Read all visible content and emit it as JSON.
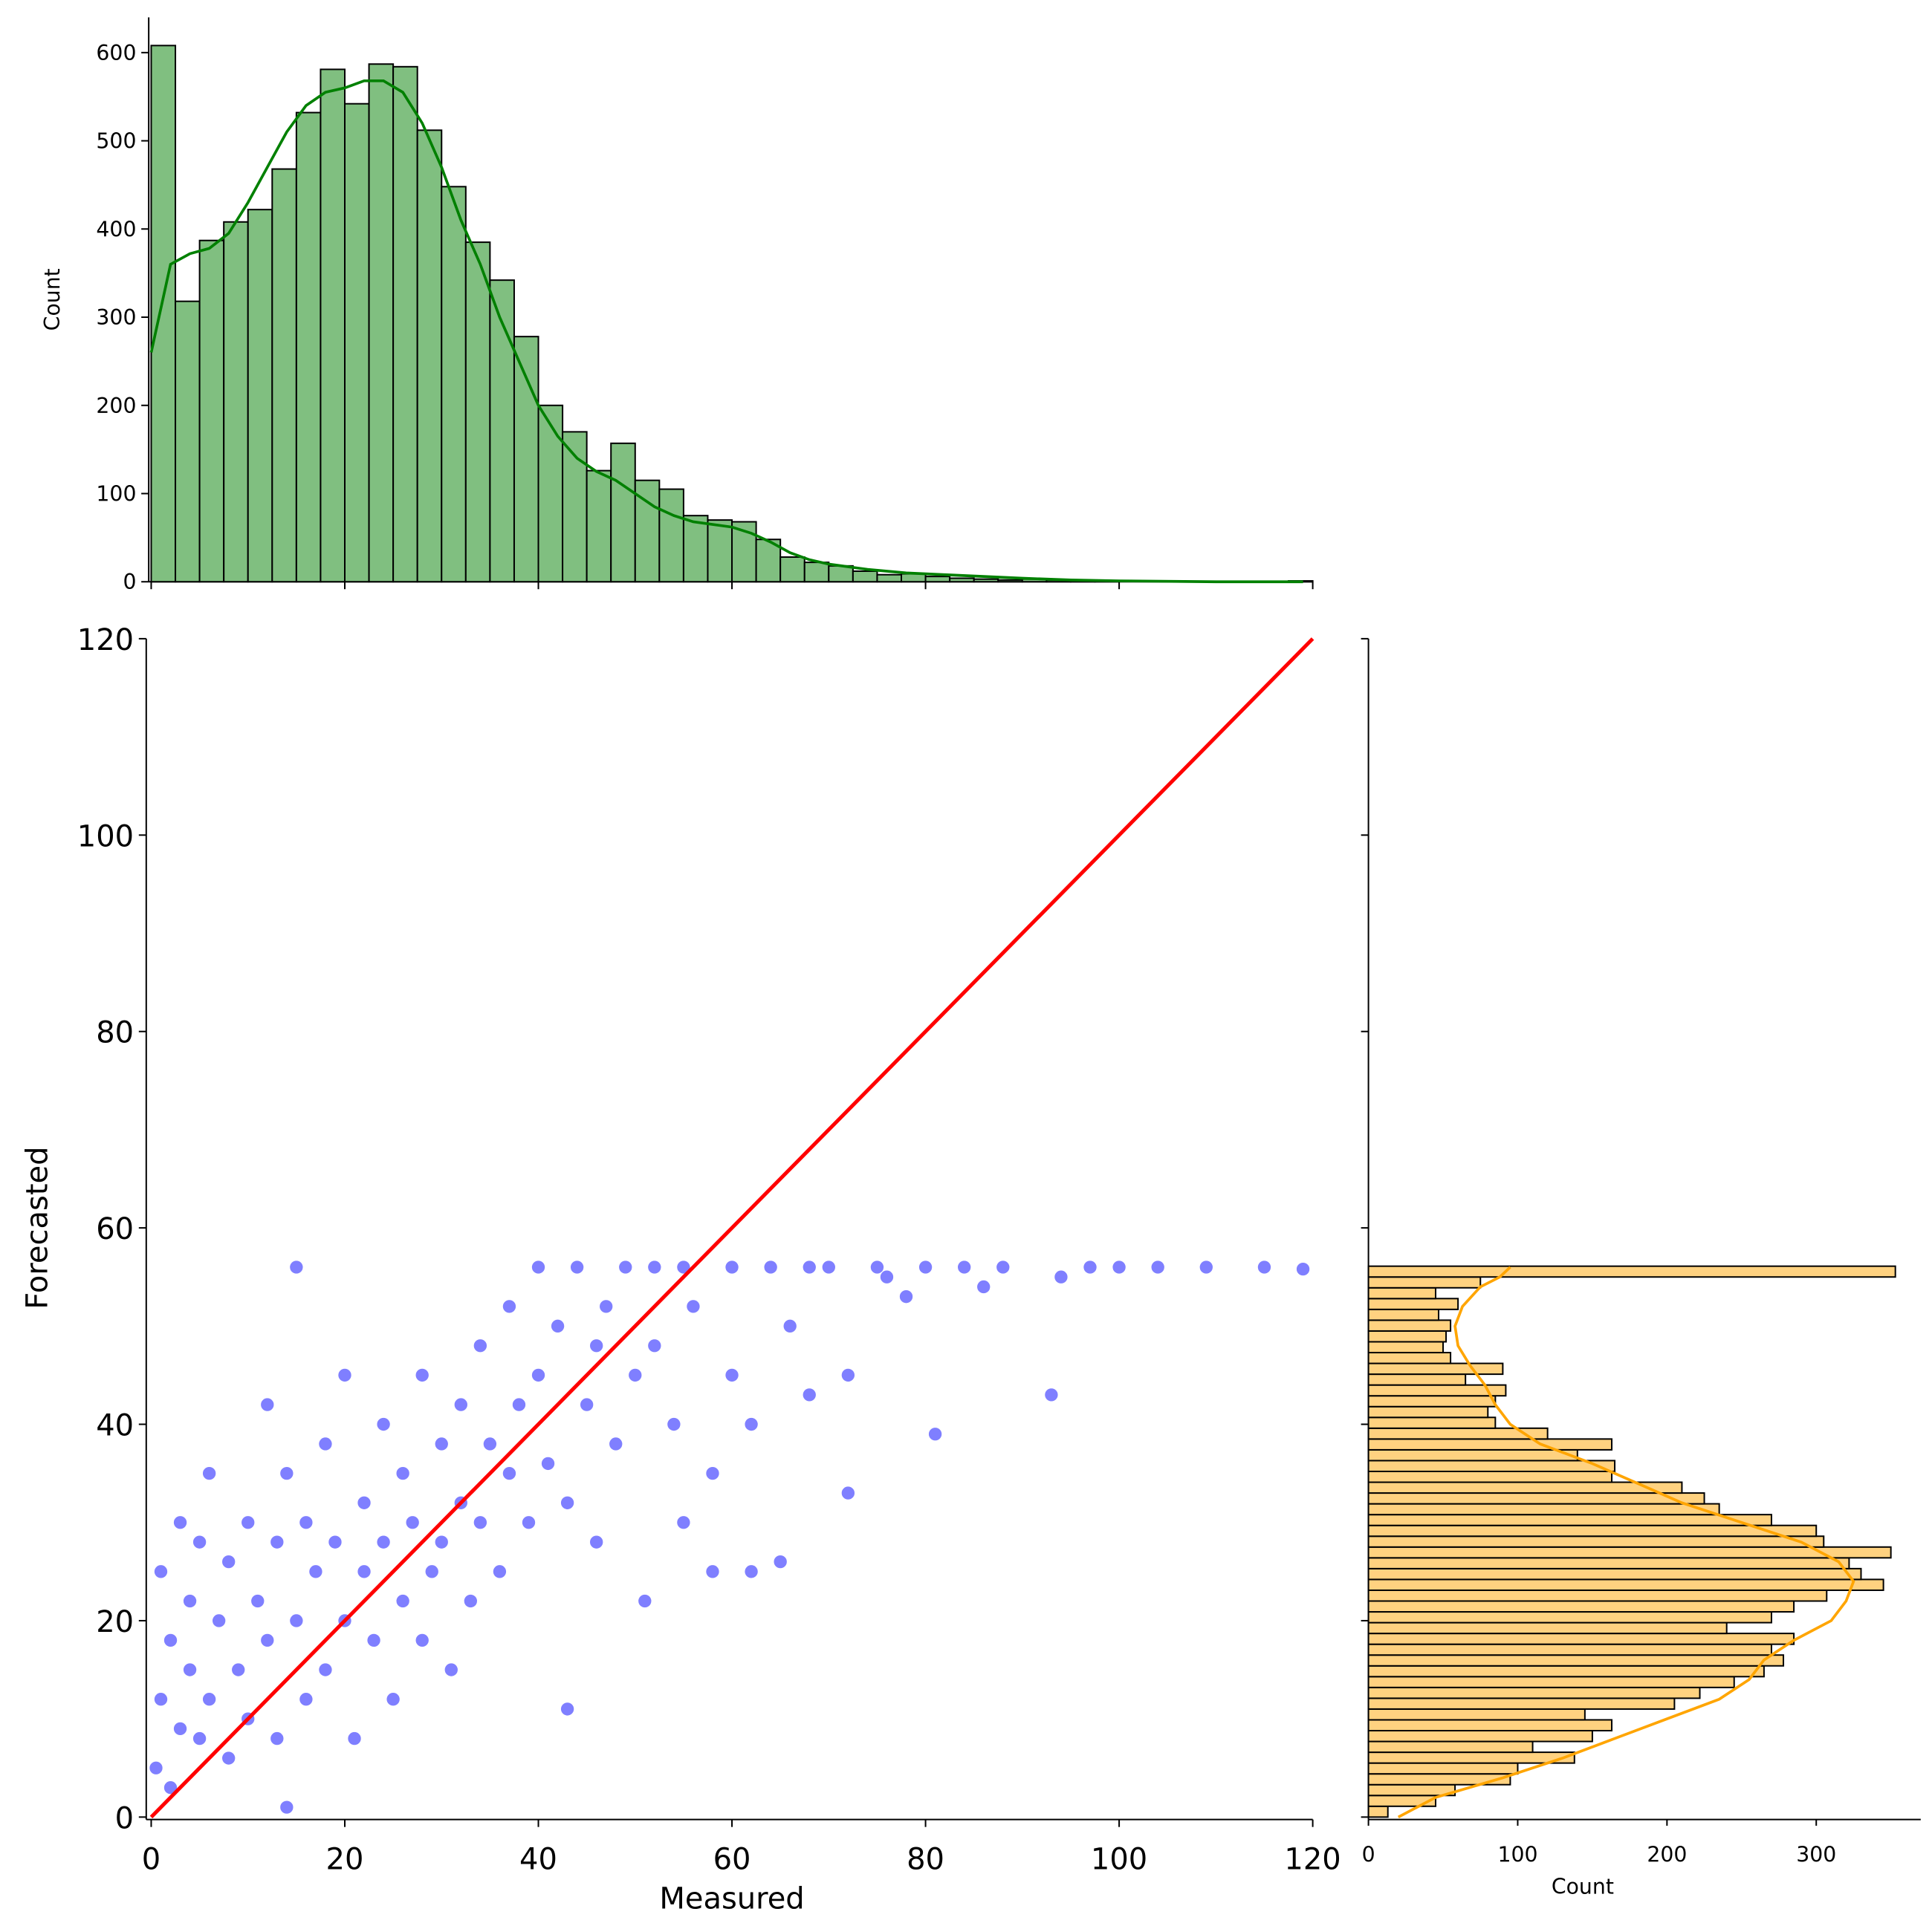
{
  "chart_data": [
    {
      "type": "scatter",
      "x_label": "Measured",
      "y_label": "Forecasted",
      "xlim": [
        0,
        120
      ],
      "ylim": [
        0,
        120
      ],
      "xticks": [
        0,
        20,
        40,
        60,
        80,
        100,
        120
      ],
      "yticks": [
        0,
        20,
        40,
        60,
        80,
        100,
        120
      ],
      "color": "#0000ff",
      "x": [
        0.5,
        1,
        1,
        2,
        2,
        3,
        3,
        4,
        4,
        5,
        5,
        6,
        6,
        7,
        8,
        8,
        9,
        10,
        10,
        11,
        12,
        12,
        13,
        13,
        14,
        14,
        15,
        15,
        16,
        16,
        17,
        18,
        18,
        19,
        20,
        20,
        21,
        22,
        22,
        23,
        24,
        24,
        25,
        26,
        26,
        27,
        28,
        28,
        29,
        30,
        30,
        31,
        32,
        32,
        33,
        34,
        34,
        35,
        36,
        37,
        37,
        38,
        39,
        40,
        40,
        41,
        42,
        43,
        43,
        44,
        45,
        46,
        46,
        47,
        48,
        49,
        50,
        51,
        52,
        52,
        54,
        55,
        55,
        56,
        58,
        58,
        60,
        60,
        62,
        62,
        64,
        65,
        66,
        68,
        68,
        70,
        72,
        72,
        75,
        76,
        78,
        80,
        81,
        84,
        86,
        88,
        93,
        94,
        97,
        100,
        104,
        109,
        115,
        119
      ],
      "y": [
        5,
        12,
        25,
        18,
        3,
        9,
        30,
        15,
        22,
        8,
        28,
        12,
        35,
        20,
        6,
        26,
        15,
        30,
        10,
        22,
        42,
        18,
        8,
        28,
        1,
        35,
        56,
        20,
        12,
        30,
        25,
        38,
        15,
        28,
        45,
        20,
        8,
        32,
        25,
        18,
        40,
        28,
        12,
        35,
        22,
        30,
        45,
        18,
        25,
        38,
        28,
        15,
        42,
        32,
        22,
        48,
        30,
        38,
        25,
        52,
        35,
        42,
        30,
        56,
        45,
        36,
        50,
        11,
        32,
        56,
        42,
        48,
        28,
        52,
        38,
        56,
        45,
        22,
        56,
        48,
        40,
        56,
        30,
        52,
        35,
        25,
        56,
        45,
        25,
        40,
        56,
        26,
        50,
        56,
        43,
        56,
        33,
        45,
        56,
        55,
        53,
        56,
        39,
        56,
        54,
        56,
        43,
        55,
        56,
        56,
        56,
        56,
        56,
        55.8
      ],
      "line": {
        "x": [
          0,
          120
        ],
        "y": [
          0,
          120
        ],
        "color": "#ff0000"
      }
    },
    {
      "type": "histogram",
      "y_label": "Count",
      "color": "#80bf80",
      "edgecolor": "#000000",
      "xlim": [
        0,
        120
      ],
      "ylim": [
        0,
        640
      ],
      "yticks": [
        0,
        100,
        200,
        300,
        400,
        500,
        600
      ],
      "bins": [
        0,
        2.5,
        5,
        7.5,
        10,
        12.5,
        15,
        17.5,
        20,
        22.5,
        25,
        27.5,
        30,
        32.5,
        35,
        37.5,
        40,
        42.5,
        45,
        47.5,
        50,
        52.5,
        55,
        57.5,
        60,
        62.5,
        65,
        67.5,
        70,
        72.5,
        75,
        77.5,
        80,
        82.5,
        85,
        87.5,
        90,
        92.5,
        95,
        97.5,
        100,
        102.5,
        105,
        107.5,
        110,
        112.5,
        115,
        117.5,
        120
      ],
      "counts": [
        608,
        318,
        387,
        408,
        422,
        468,
        532,
        581,
        542,
        587,
        584,
        512,
        448,
        385,
        342,
        278,
        200,
        170,
        126,
        157,
        115,
        105,
        75,
        70,
        68,
        48,
        28,
        22,
        18,
        12,
        8,
        9,
        6,
        4,
        3,
        2,
        3,
        2,
        1,
        1,
        0,
        0,
        0,
        0,
        0,
        0,
        0,
        1
      ],
      "kde": {
        "color": "#008000",
        "x": [
          0,
          2,
          4,
          6,
          8,
          10,
          12,
          14,
          16,
          18,
          20,
          22,
          24,
          26,
          28,
          30,
          32,
          34,
          36,
          38,
          40,
          42,
          44,
          46,
          48,
          50,
          52,
          54,
          56,
          58,
          60,
          62,
          64,
          66,
          68,
          70,
          74,
          78,
          82,
          86,
          90,
          95,
          100,
          110,
          119
        ],
        "values": [
          260,
          360,
          372,
          378,
          395,
          430,
          470,
          510,
          540,
          555,
          560,
          568,
          568,
          555,
          520,
          470,
          410,
          360,
          300,
          250,
          200,
          165,
          140,
          125,
          115,
          100,
          85,
          75,
          68,
          65,
          62,
          55,
          45,
          33,
          25,
          20,
          14,
          10,
          8,
          6,
          4,
          2,
          1,
          0,
          0
        ]
      }
    },
    {
      "type": "histogram",
      "orientation": "horizontal",
      "x_label": "Count",
      "color": "#ffd280",
      "edgecolor": "#000000",
      "xlim": [
        0,
        370
      ],
      "xticks": [
        0,
        100,
        200,
        300
      ],
      "ylim": [
        0,
        120
      ],
      "bins": [
        0,
        1.1,
        2.2,
        3.3,
        4.4,
        5.5,
        6.6,
        7.7,
        8.8,
        9.9,
        11,
        12.1,
        13.2,
        14.3,
        15.4,
        16.5,
        17.6,
        18.7,
        19.8,
        20.9,
        22,
        23.1,
        24.2,
        25.3,
        26.4,
        27.5,
        28.6,
        29.7,
        30.8,
        31.9,
        33,
        34.1,
        35.2,
        36.3,
        37.4,
        38.5,
        39.6,
        40.7,
        41.8,
        42.9,
        44,
        45.1,
        46.2,
        47.3,
        48.4,
        49.5,
        50.6,
        51.7,
        52.8,
        53.9,
        55,
        56.1
      ],
      "counts": [
        13,
        45,
        58,
        95,
        100,
        138,
        110,
        150,
        163,
        145,
        205,
        222,
        245,
        265,
        278,
        270,
        285,
        240,
        270,
        285,
        307,
        345,
        330,
        322,
        350,
        305,
        300,
        270,
        235,
        225,
        210,
        163,
        165,
        140,
        163,
        120,
        85,
        80,
        85,
        92,
        65,
        90,
        55,
        50,
        52,
        55,
        47,
        60,
        45,
        75,
        353
      ],
      "kde": {
        "color": "#ffa500",
        "x": [
          0,
          2,
          4,
          6,
          8,
          10,
          12,
          14,
          16,
          18,
          20,
          22,
          24,
          26,
          28,
          30,
          32,
          34,
          36,
          38,
          40,
          42,
          44,
          46,
          48,
          50,
          52,
          54,
          55,
          56
        ],
        "values": [
          20,
          45,
          90,
          130,
          165,
          200,
          235,
          255,
          265,
          285,
          310,
          320,
          325,
          315,
          290,
          250,
          210,
          180,
          150,
          115,
          95,
          85,
          78,
          68,
          60,
          58,
          63,
          75,
          88,
          95
        ]
      }
    }
  ]
}
